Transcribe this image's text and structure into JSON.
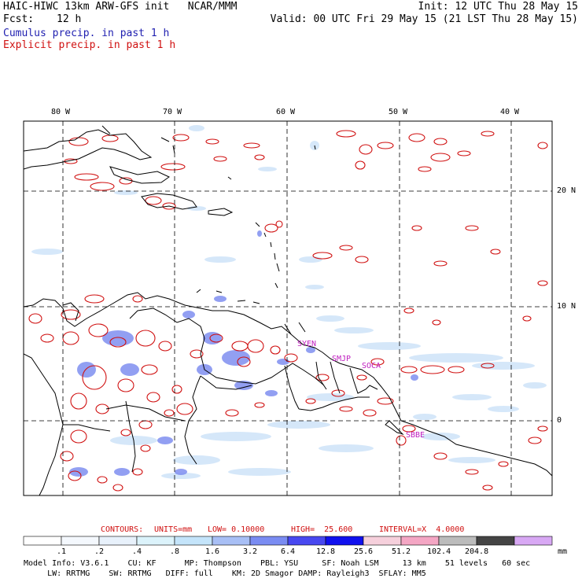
{
  "header": {
    "title_left": "HAIC-HIWC 13km ARW-GFS init   NCAR/MMM",
    "init": "Init: 12 UTC Thu 28 May 15",
    "fcst_label": "Fcst:",
    "fcst_value": "12 h",
    "valid": "Valid: 00 UTC Fri 29 May 15 (21 LST Thu 28 May 15)",
    "cumulus_label": "Cumulus precip. in past 1 h",
    "explicit_label": "Explicit precip. in past 1 h"
  },
  "colors": {
    "cumulus": "#1f1fb0",
    "explicit": "#d01010",
    "coast": "#000000",
    "grid": "#000000"
  },
  "map": {
    "lon_labels": [
      "80 W",
      "70 W",
      "60 W",
      "50 W",
      "40 W"
    ],
    "lat_labels": [
      "20 N",
      "10 N",
      "0"
    ],
    "stations": [
      "SYEN",
      "SMJP",
      "SOCA",
      "SBBE"
    ]
  },
  "contours": {
    "label": "CONTOURS:",
    "units": "UNITS=mm",
    "low": "LOW= 0.10000",
    "high": "HIGH=  25.600",
    "interval": "INTERVAL=X  4.0000"
  },
  "colorbar": {
    "unit": "mm",
    "labels": [
      ".1",
      ".2",
      ".4",
      ".8",
      "1.6",
      "3.2",
      "6.4",
      "12.8",
      "25.6",
      "51.2",
      "102.4",
      "204.8"
    ],
    "colors": [
      "#ffffff",
      "#f4f8fd",
      "#e8f1fb",
      "#dcf3fb",
      "#c4e4fa",
      "#a8bff5",
      "#7a8cf2",
      "#4848f0",
      "#1010ee",
      "#f6d0dc",
      "#f4a6c4",
      "#bcbcbc",
      "#444444",
      "#d8a8f4"
    ]
  },
  "model_info": {
    "line1": "Model Info: V3.6.1    CU: KF      MP: Thompson    PBL: YSU     SF: Noah LSM     13 km    51 levels   60 sec",
    "line2": "     LW: RRTMG    SW: RRTMG   DIFF: full    KM: 2D Smagor DAMP: Rayleigh3  SFLAY: MM5"
  }
}
